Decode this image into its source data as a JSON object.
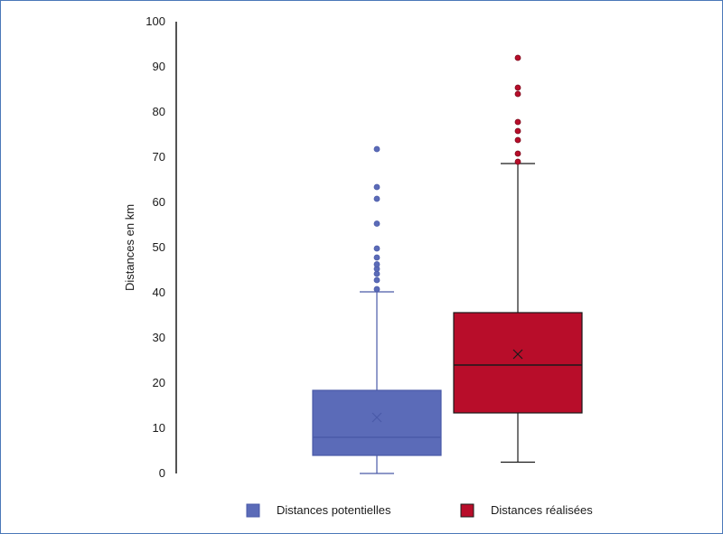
{
  "chart_data": {
    "type": "boxplot",
    "title": "",
    "xlabel": "",
    "ylabel": "Distances en km",
    "ylim": [
      0,
      100
    ],
    "yticks": [
      0,
      10,
      20,
      30,
      40,
      50,
      60,
      70,
      80,
      90,
      100
    ],
    "grid": false,
    "legend_position": "bottom",
    "series": [
      {
        "name": "Distances potentielles",
        "color": "#5b6bb8",
        "line_color": "#4a5aa8",
        "min": 0,
        "q1": 4,
        "median": 8,
        "q3": 18.4,
        "max": 40.2,
        "mean": 12.4,
        "outliers": [
          40.8,
          42.8,
          44.2,
          45.3,
          46.3,
          47.8,
          49.8,
          55.3,
          60.8,
          63.4,
          71.8
        ]
      },
      {
        "name": "Distances réalisées",
        "color": "#b80d2a",
        "line_color": "#1a1a1a",
        "min": 2.5,
        "q1": 13.4,
        "median": 24,
        "q3": 35.6,
        "max": 68.6,
        "mean": 26.4,
        "outliers": [
          69,
          70.8,
          73.8,
          75.8,
          77.8,
          84,
          85.4,
          92
        ]
      }
    ]
  }
}
